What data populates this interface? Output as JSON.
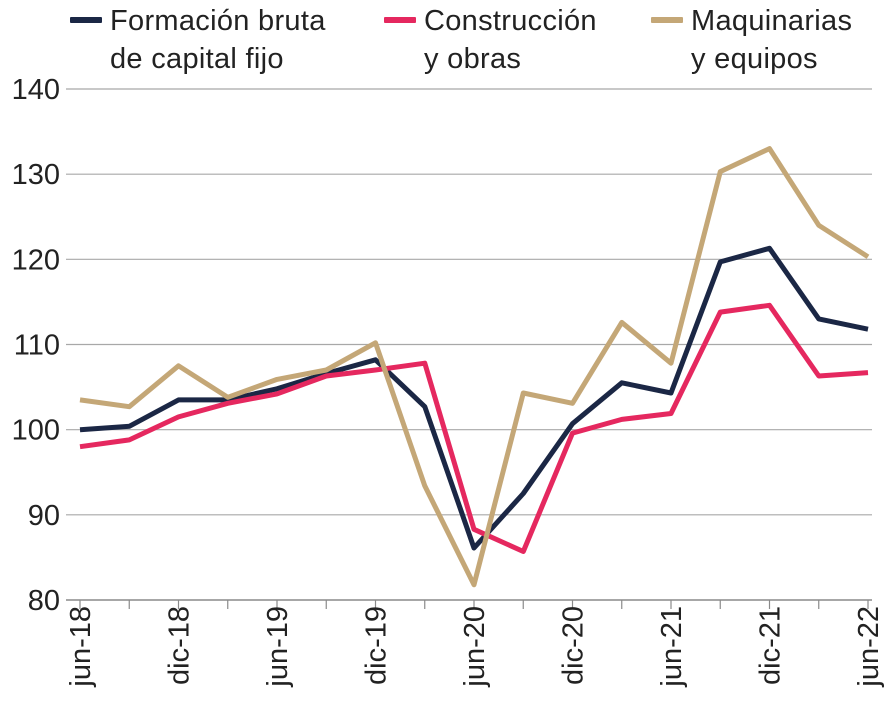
{
  "chart_data": {
    "type": "line",
    "title": "",
    "xlabel": "",
    "ylabel": "",
    "ylim": [
      80,
      140
    ],
    "yticks": [
      80,
      90,
      100,
      110,
      120,
      130,
      140
    ],
    "grid": true,
    "legend_position": "top",
    "x": [
      "jun-18",
      "sep-18",
      "dic-18",
      "mar-19",
      "jun-19",
      "sep-19",
      "dic-19",
      "mar-20",
      "jun-20",
      "sep-20",
      "dic-20",
      "mar-21",
      "jun-21",
      "sep-21",
      "dic-21",
      "mar-22",
      "jun-22"
    ],
    "xtick_labels": [
      "jun-18",
      "dic-18",
      "jun-19",
      "dic-19",
      "jun-20",
      "dic-20",
      "jun-21",
      "dic-21",
      "jun-22"
    ],
    "series": [
      {
        "name": "Formación bruta\nde capital fijo",
        "color": "#1b2745",
        "values": [
          100.0,
          100.4,
          103.5,
          103.5,
          104.8,
          106.6,
          108.2,
          102.7,
          86.1,
          92.5,
          100.7,
          105.5,
          104.3,
          119.7,
          121.3,
          113.0,
          111.8
        ]
      },
      {
        "name": "Construcción\ny obras",
        "color": "#e5285f",
        "values": [
          98.0,
          98.8,
          101.5,
          103.1,
          104.2,
          106.3,
          107.0,
          107.8,
          88.3,
          85.7,
          99.6,
          101.2,
          101.9,
          113.8,
          114.6,
          106.3,
          106.7
        ]
      },
      {
        "name": "Maquinarias\ny equipos",
        "color": "#c4a777",
        "values": [
          103.5,
          102.7,
          107.5,
          103.8,
          105.9,
          107.0,
          110.2,
          93.4,
          81.8,
          104.3,
          103.1,
          112.6,
          107.8,
          130.3,
          133.0,
          124.0,
          120.3
        ]
      }
    ]
  }
}
